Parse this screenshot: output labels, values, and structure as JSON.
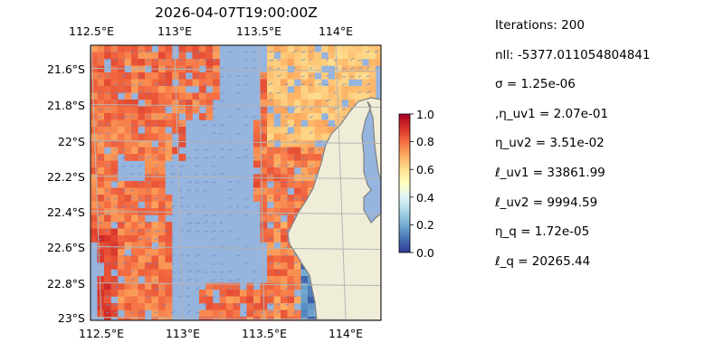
{
  "title": "2026-04-07T19:00:00Z",
  "map": {
    "extent": {
      "lon": [
        112.5,
        114.2
      ],
      "lat": [
        -23.0,
        -21.45
      ]
    },
    "top_lon_ticks": [
      "112.5°E",
      "113°E",
      "113.5°E",
      "114°E"
    ],
    "bottom_lon_ticks": [
      "112.5°E",
      "113°E",
      "113.5°E",
      "114°E"
    ],
    "lat_ticks": [
      "21.6°S",
      "21.8°S",
      "22°S",
      "22.2°S",
      "22.4°S",
      "22.6°S",
      "22.8°S",
      "23°S"
    ],
    "colors": {
      "ocean": "#95b4de",
      "land": "#efecd8",
      "coast": "#808080",
      "grid": "#b5b5b5",
      "arrows": "#6f88c8"
    }
  },
  "colorbar": {
    "range": [
      0.0,
      1.0
    ],
    "ticks": [
      "0.0",
      "0.2",
      "0.4",
      "0.6",
      "0.8",
      "1.0"
    ],
    "colormap": [
      "#313695",
      "#4575b4",
      "#74add1",
      "#abd9e9",
      "#e0f3f8",
      "#ffffbf",
      "#fee090",
      "#fdae61",
      "#f46d43",
      "#d73027",
      "#a50026"
    ]
  },
  "stats": [
    "Iterations: 200",
    "nll: -5377.011054804841",
    "σ = 1.25e-06",
    ",η_uv1 = 2.07e-01",
    "η_uv2 = 3.51e-02",
    "ℓ_uv1 = 33861.99",
    "ℓ_uv2 = 9994.59",
    "η_q = 1.72e-05",
    "ℓ_q = 20265.44"
  ]
}
